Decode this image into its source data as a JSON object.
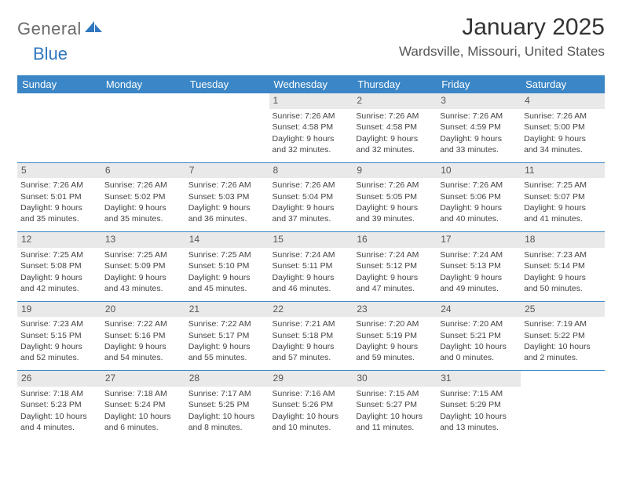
{
  "brand": {
    "word1": "General",
    "word2": "Blue"
  },
  "title": "January 2025",
  "location": "Wardsville, Missouri, United States",
  "header_bg": "#3b86c6",
  "daynum_bg": "#e9e9e9",
  "dow": [
    "Sunday",
    "Monday",
    "Tuesday",
    "Wednesday",
    "Thursday",
    "Friday",
    "Saturday"
  ],
  "weeks": [
    [
      null,
      null,
      null,
      {
        "n": "1",
        "r": "7:26 AM",
        "s": "4:58 PM",
        "d": "9 hours and 32 minutes."
      },
      {
        "n": "2",
        "r": "7:26 AM",
        "s": "4:58 PM",
        "d": "9 hours and 32 minutes."
      },
      {
        "n": "3",
        "r": "7:26 AM",
        "s": "4:59 PM",
        "d": "9 hours and 33 minutes."
      },
      {
        "n": "4",
        "r": "7:26 AM",
        "s": "5:00 PM",
        "d": "9 hours and 34 minutes."
      }
    ],
    [
      {
        "n": "5",
        "r": "7:26 AM",
        "s": "5:01 PM",
        "d": "9 hours and 35 minutes."
      },
      {
        "n": "6",
        "r": "7:26 AM",
        "s": "5:02 PM",
        "d": "9 hours and 35 minutes."
      },
      {
        "n": "7",
        "r": "7:26 AM",
        "s": "5:03 PM",
        "d": "9 hours and 36 minutes."
      },
      {
        "n": "8",
        "r": "7:26 AM",
        "s": "5:04 PM",
        "d": "9 hours and 37 minutes."
      },
      {
        "n": "9",
        "r": "7:26 AM",
        "s": "5:05 PM",
        "d": "9 hours and 39 minutes."
      },
      {
        "n": "10",
        "r": "7:26 AM",
        "s": "5:06 PM",
        "d": "9 hours and 40 minutes."
      },
      {
        "n": "11",
        "r": "7:25 AM",
        "s": "5:07 PM",
        "d": "9 hours and 41 minutes."
      }
    ],
    [
      {
        "n": "12",
        "r": "7:25 AM",
        "s": "5:08 PM",
        "d": "9 hours and 42 minutes."
      },
      {
        "n": "13",
        "r": "7:25 AM",
        "s": "5:09 PM",
        "d": "9 hours and 43 minutes."
      },
      {
        "n": "14",
        "r": "7:25 AM",
        "s": "5:10 PM",
        "d": "9 hours and 45 minutes."
      },
      {
        "n": "15",
        "r": "7:24 AM",
        "s": "5:11 PM",
        "d": "9 hours and 46 minutes."
      },
      {
        "n": "16",
        "r": "7:24 AM",
        "s": "5:12 PM",
        "d": "9 hours and 47 minutes."
      },
      {
        "n": "17",
        "r": "7:24 AM",
        "s": "5:13 PM",
        "d": "9 hours and 49 minutes."
      },
      {
        "n": "18",
        "r": "7:23 AM",
        "s": "5:14 PM",
        "d": "9 hours and 50 minutes."
      }
    ],
    [
      {
        "n": "19",
        "r": "7:23 AM",
        "s": "5:15 PM",
        "d": "9 hours and 52 minutes."
      },
      {
        "n": "20",
        "r": "7:22 AM",
        "s": "5:16 PM",
        "d": "9 hours and 54 minutes."
      },
      {
        "n": "21",
        "r": "7:22 AM",
        "s": "5:17 PM",
        "d": "9 hours and 55 minutes."
      },
      {
        "n": "22",
        "r": "7:21 AM",
        "s": "5:18 PM",
        "d": "9 hours and 57 minutes."
      },
      {
        "n": "23",
        "r": "7:20 AM",
        "s": "5:19 PM",
        "d": "9 hours and 59 minutes."
      },
      {
        "n": "24",
        "r": "7:20 AM",
        "s": "5:21 PM",
        "d": "10 hours and 0 minutes."
      },
      {
        "n": "25",
        "r": "7:19 AM",
        "s": "5:22 PM",
        "d": "10 hours and 2 minutes."
      }
    ],
    [
      {
        "n": "26",
        "r": "7:18 AM",
        "s": "5:23 PM",
        "d": "10 hours and 4 minutes."
      },
      {
        "n": "27",
        "r": "7:18 AM",
        "s": "5:24 PM",
        "d": "10 hours and 6 minutes."
      },
      {
        "n": "28",
        "r": "7:17 AM",
        "s": "5:25 PM",
        "d": "10 hours and 8 minutes."
      },
      {
        "n": "29",
        "r": "7:16 AM",
        "s": "5:26 PM",
        "d": "10 hours and 10 minutes."
      },
      {
        "n": "30",
        "r": "7:15 AM",
        "s": "5:27 PM",
        "d": "10 hours and 11 minutes."
      },
      {
        "n": "31",
        "r": "7:15 AM",
        "s": "5:29 PM",
        "d": "10 hours and 13 minutes."
      },
      null
    ]
  ],
  "labels": {
    "sunrise": "Sunrise:",
    "sunset": "Sunset:",
    "daylight": "Daylight:"
  }
}
